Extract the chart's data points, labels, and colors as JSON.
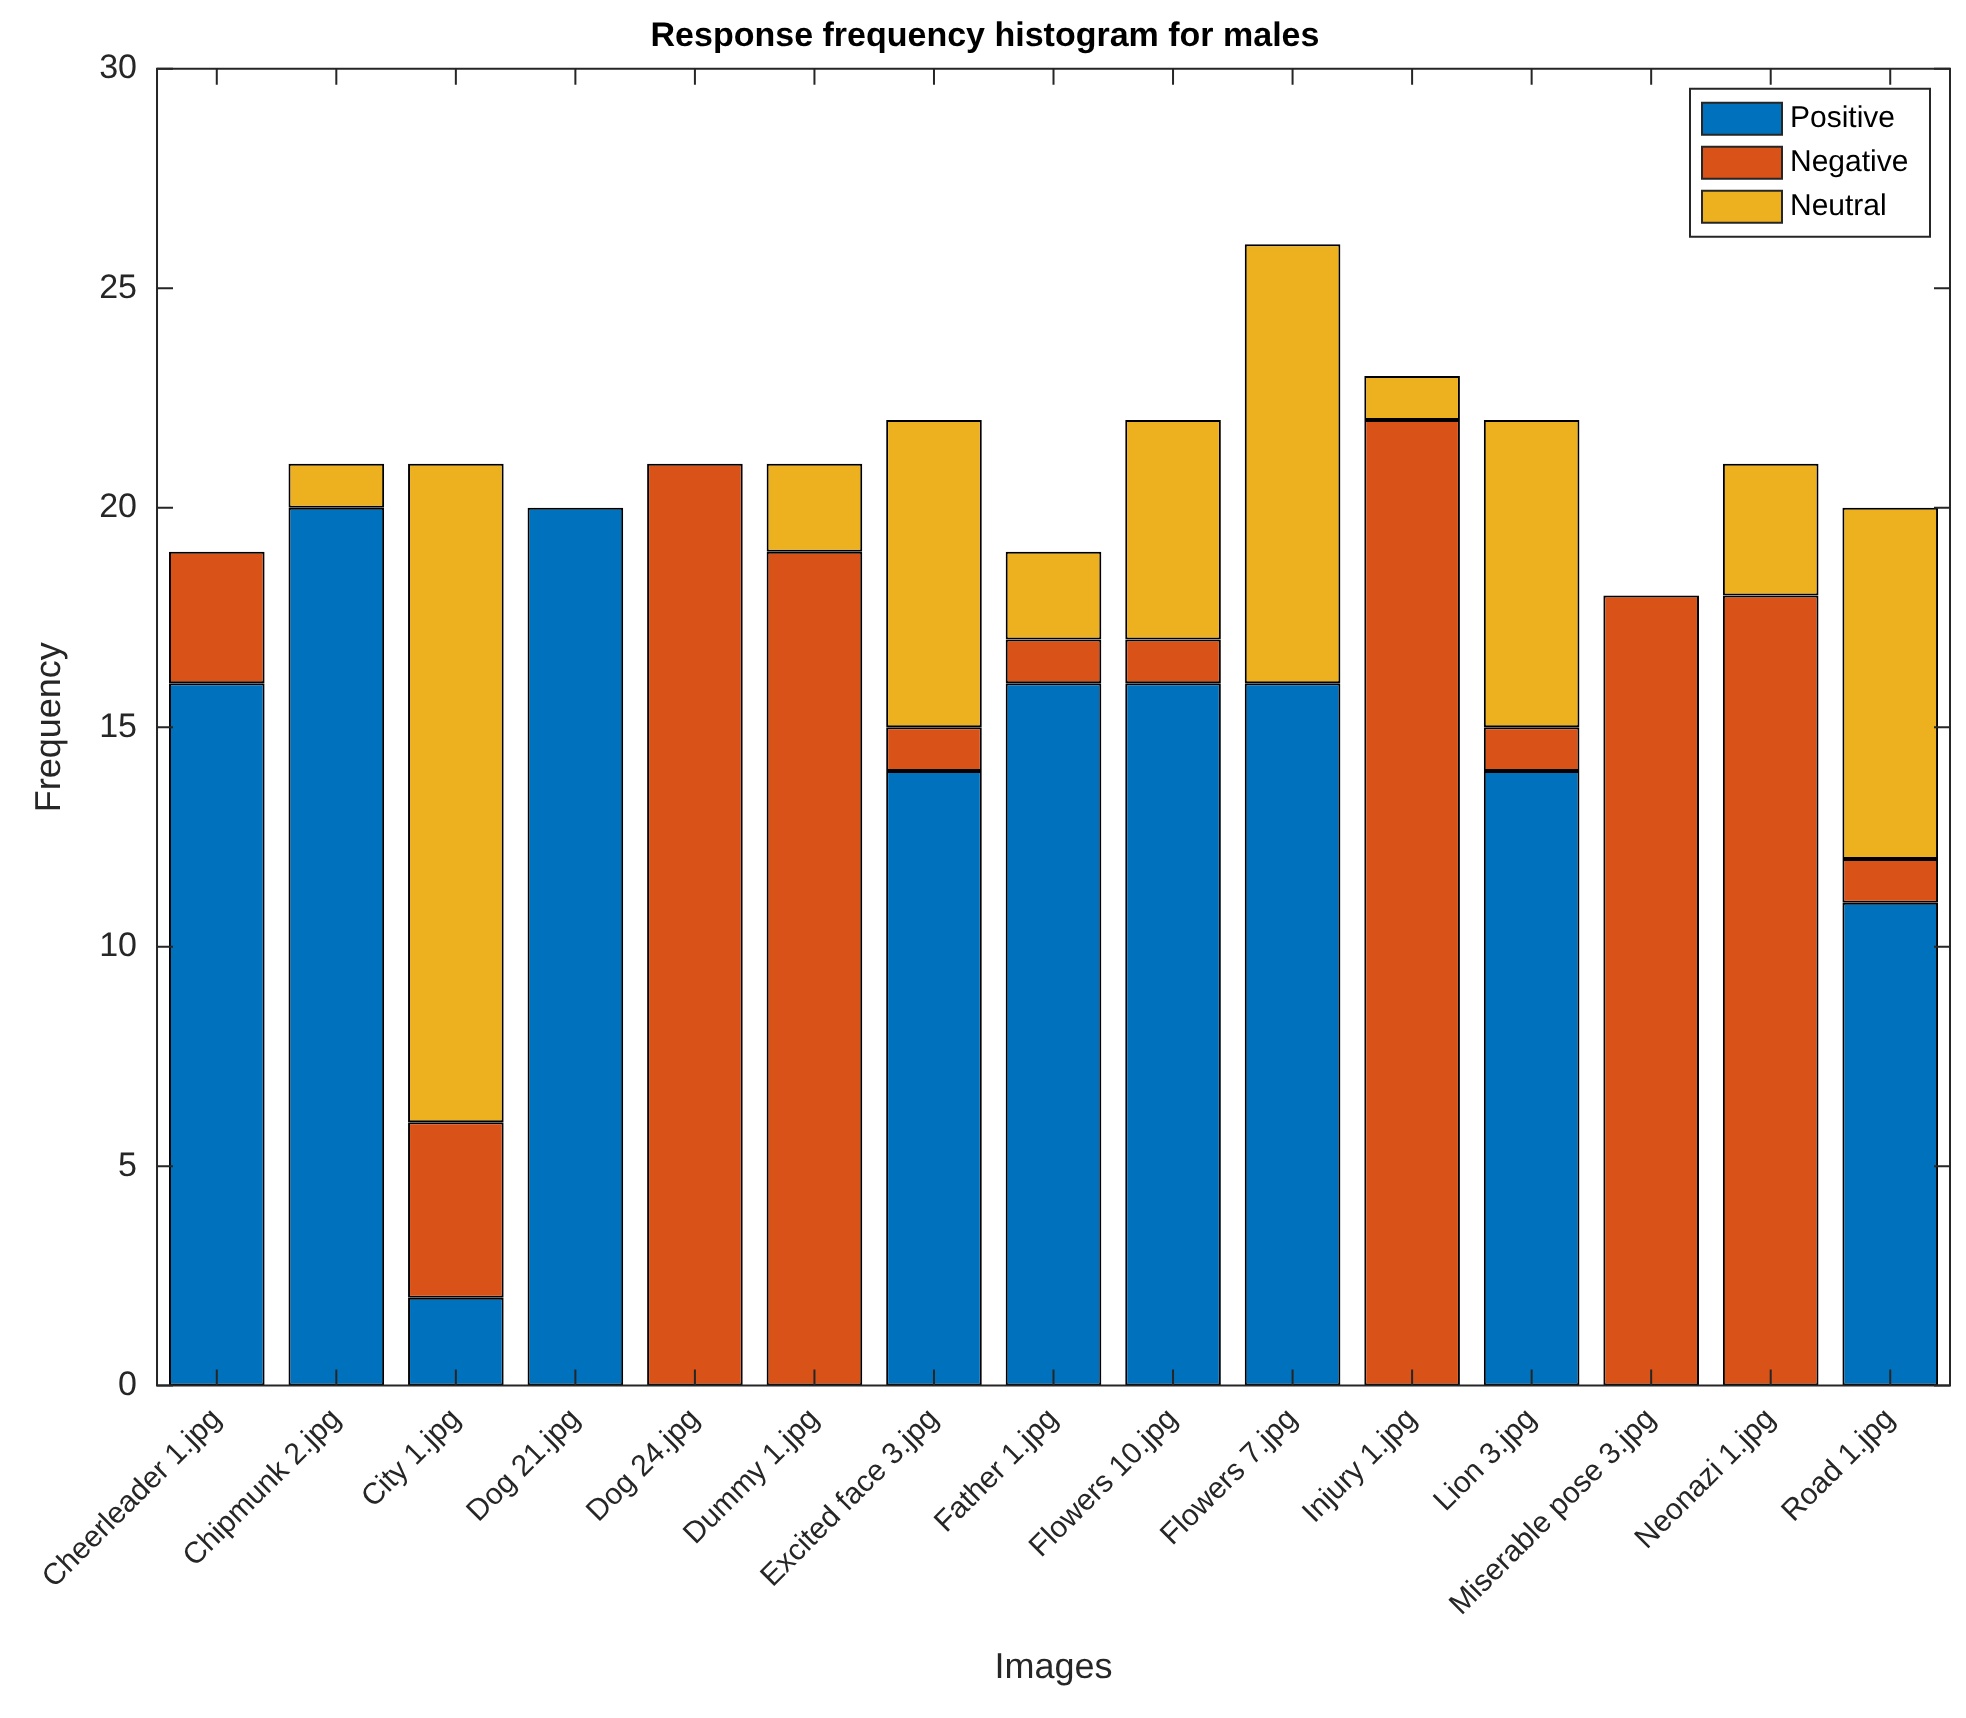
{
  "chart_data": {
    "type": "bar",
    "title": "Response frequency histogram for males",
    "xlabel": "Images",
    "ylabel": "Frequency",
    "categories": [
      "Cheerleader 1.jpg",
      "Chipmunk 2.jpg",
      "City 1.jpg",
      "Dog 21.jpg",
      "Dog 24.jpg",
      "Dummy 1.jpg",
      "Excited face 3.jpg",
      "Father 1.jpg",
      "Flowers 10.jpg",
      "Flowers 7.jpg",
      "Injury 1.jpg",
      "Lion 3.jpg",
      "Miserable pose 3.jpg",
      "Neonazi 1.jpg",
      "Road 1.jpg"
    ],
    "series": [
      {
        "name": "Positive",
        "color": "#0072bd",
        "values": [
          16,
          20,
          2,
          20,
          0,
          0,
          14,
          16,
          16,
          16,
          0,
          14,
          0,
          0,
          11
        ]
      },
      {
        "name": "Negative",
        "color": "#d95319",
        "values": [
          3,
          0,
          4,
          0,
          21,
          19,
          1,
          1,
          1,
          0,
          22,
          1,
          18,
          18,
          1
        ]
      },
      {
        "name": "Neutral",
        "color": "#edb120",
        "values": [
          0,
          1,
          15,
          0,
          0,
          2,
          7,
          2,
          5,
          10,
          1,
          7,
          0,
          3,
          8
        ]
      }
    ],
    "stacked": true,
    "ylim": [
      0,
      30
    ],
    "yticks": [
      0,
      5,
      10,
      15,
      20,
      25,
      30
    ],
    "grid": false,
    "legend": "top right"
  }
}
